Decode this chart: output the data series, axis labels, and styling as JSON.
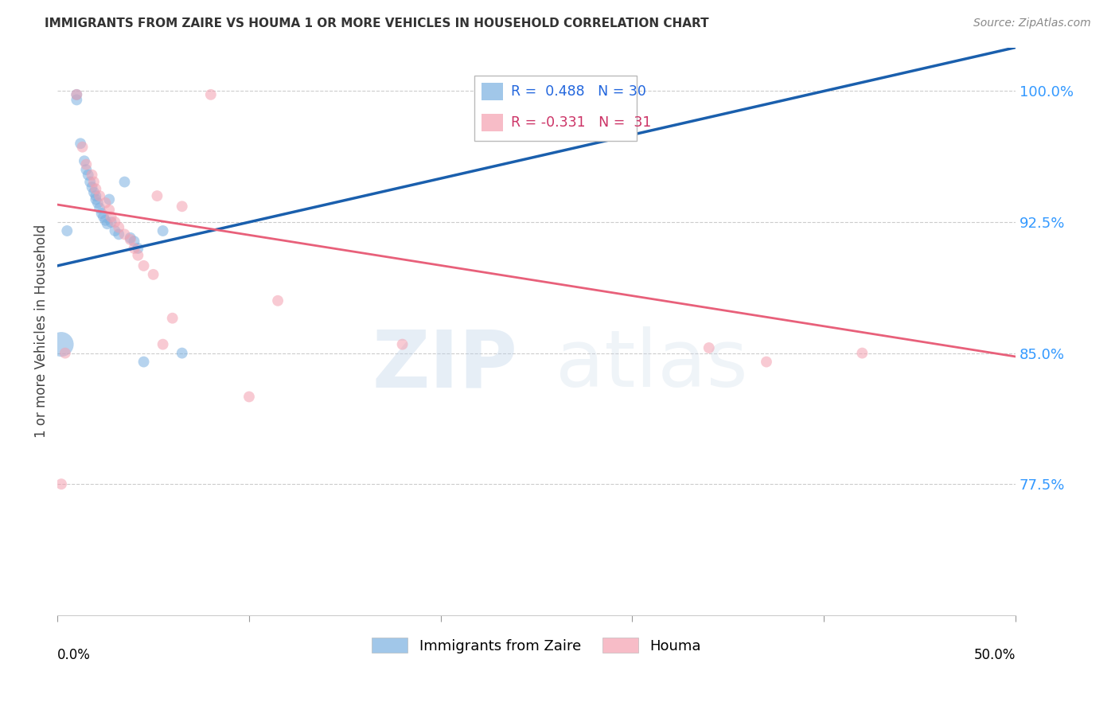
{
  "title": "IMMIGRANTS FROM ZAIRE VS HOUMA 1 OR MORE VEHICLES IN HOUSEHOLD CORRELATION CHART",
  "source": "Source: ZipAtlas.com",
  "ylabel": "1 or more Vehicles in Household",
  "ytick_labels": [
    "77.5%",
    "85.0%",
    "92.5%",
    "100.0%"
  ],
  "ytick_values": [
    0.775,
    0.85,
    0.925,
    1.0
  ],
  "xmin": 0.0,
  "xmax": 0.5,
  "ymin": 0.7,
  "ymax": 1.025,
  "blue_R": 0.488,
  "blue_N": 30,
  "pink_R": -0.331,
  "pink_N": 31,
  "blue_color": "#7ab0e0",
  "pink_color": "#f4a0b0",
  "blue_line_color": "#1a5fad",
  "pink_line_color": "#e8607a",
  "watermark_zip": "ZIP",
  "watermark_atlas": "atlas",
  "legend_label_blue": "Immigrants from Zaire",
  "legend_label_pink": "Houma",
  "blue_points_x": [
    0.005,
    0.01,
    0.01,
    0.012,
    0.014,
    0.015,
    0.016,
    0.017,
    0.018,
    0.019,
    0.02,
    0.02,
    0.021,
    0.022,
    0.023,
    0.024,
    0.025,
    0.026,
    0.027,
    0.028,
    0.03,
    0.032,
    0.035,
    0.038,
    0.04,
    0.042,
    0.045,
    0.055,
    0.065,
    0.002
  ],
  "blue_points_y": [
    0.92,
    0.998,
    0.995,
    0.97,
    0.96,
    0.955,
    0.952,
    0.948,
    0.945,
    0.942,
    0.94,
    0.938,
    0.936,
    0.933,
    0.93,
    0.928,
    0.926,
    0.924,
    0.938,
    0.925,
    0.92,
    0.918,
    0.948,
    0.916,
    0.914,
    0.91,
    0.845,
    0.92,
    0.85,
    0.855
  ],
  "blue_point_sizes": [
    100,
    100,
    100,
    100,
    100,
    100,
    100,
    100,
    100,
    100,
    100,
    100,
    100,
    100,
    100,
    100,
    100,
    100,
    100,
    100,
    100,
    100,
    100,
    100,
    100,
    100,
    100,
    100,
    100,
    500
  ],
  "pink_points_x": [
    0.002,
    0.004,
    0.01,
    0.013,
    0.015,
    0.018,
    0.019,
    0.02,
    0.022,
    0.025,
    0.027,
    0.028,
    0.03,
    0.032,
    0.035,
    0.038,
    0.04,
    0.042,
    0.045,
    0.05,
    0.052,
    0.055,
    0.06,
    0.065,
    0.08,
    0.1,
    0.115,
    0.18,
    0.34,
    0.37,
    0.42
  ],
  "pink_points_y": [
    0.775,
    0.85,
    0.998,
    0.968,
    0.958,
    0.952,
    0.948,
    0.944,
    0.94,
    0.936,
    0.932,
    0.928,
    0.925,
    0.922,
    0.918,
    0.915,
    0.91,
    0.906,
    0.9,
    0.895,
    0.94,
    0.855,
    0.87,
    0.934,
    0.998,
    0.825,
    0.88,
    0.855,
    0.853,
    0.845,
    0.85
  ],
  "pink_point_sizes": [
    100,
    100,
    100,
    100,
    100,
    100,
    100,
    100,
    100,
    100,
    100,
    100,
    100,
    100,
    100,
    100,
    100,
    100,
    100,
    100,
    100,
    100,
    100,
    100,
    100,
    100,
    100,
    100,
    100,
    100,
    100
  ],
  "blue_line_x0": 0.0,
  "blue_line_y0": 0.9,
  "blue_line_x1": 0.5,
  "blue_line_y1": 1.025,
  "pink_line_x0": 0.0,
  "pink_line_y0": 0.935,
  "pink_line_x1": 0.5,
  "pink_line_y1": 0.848
}
